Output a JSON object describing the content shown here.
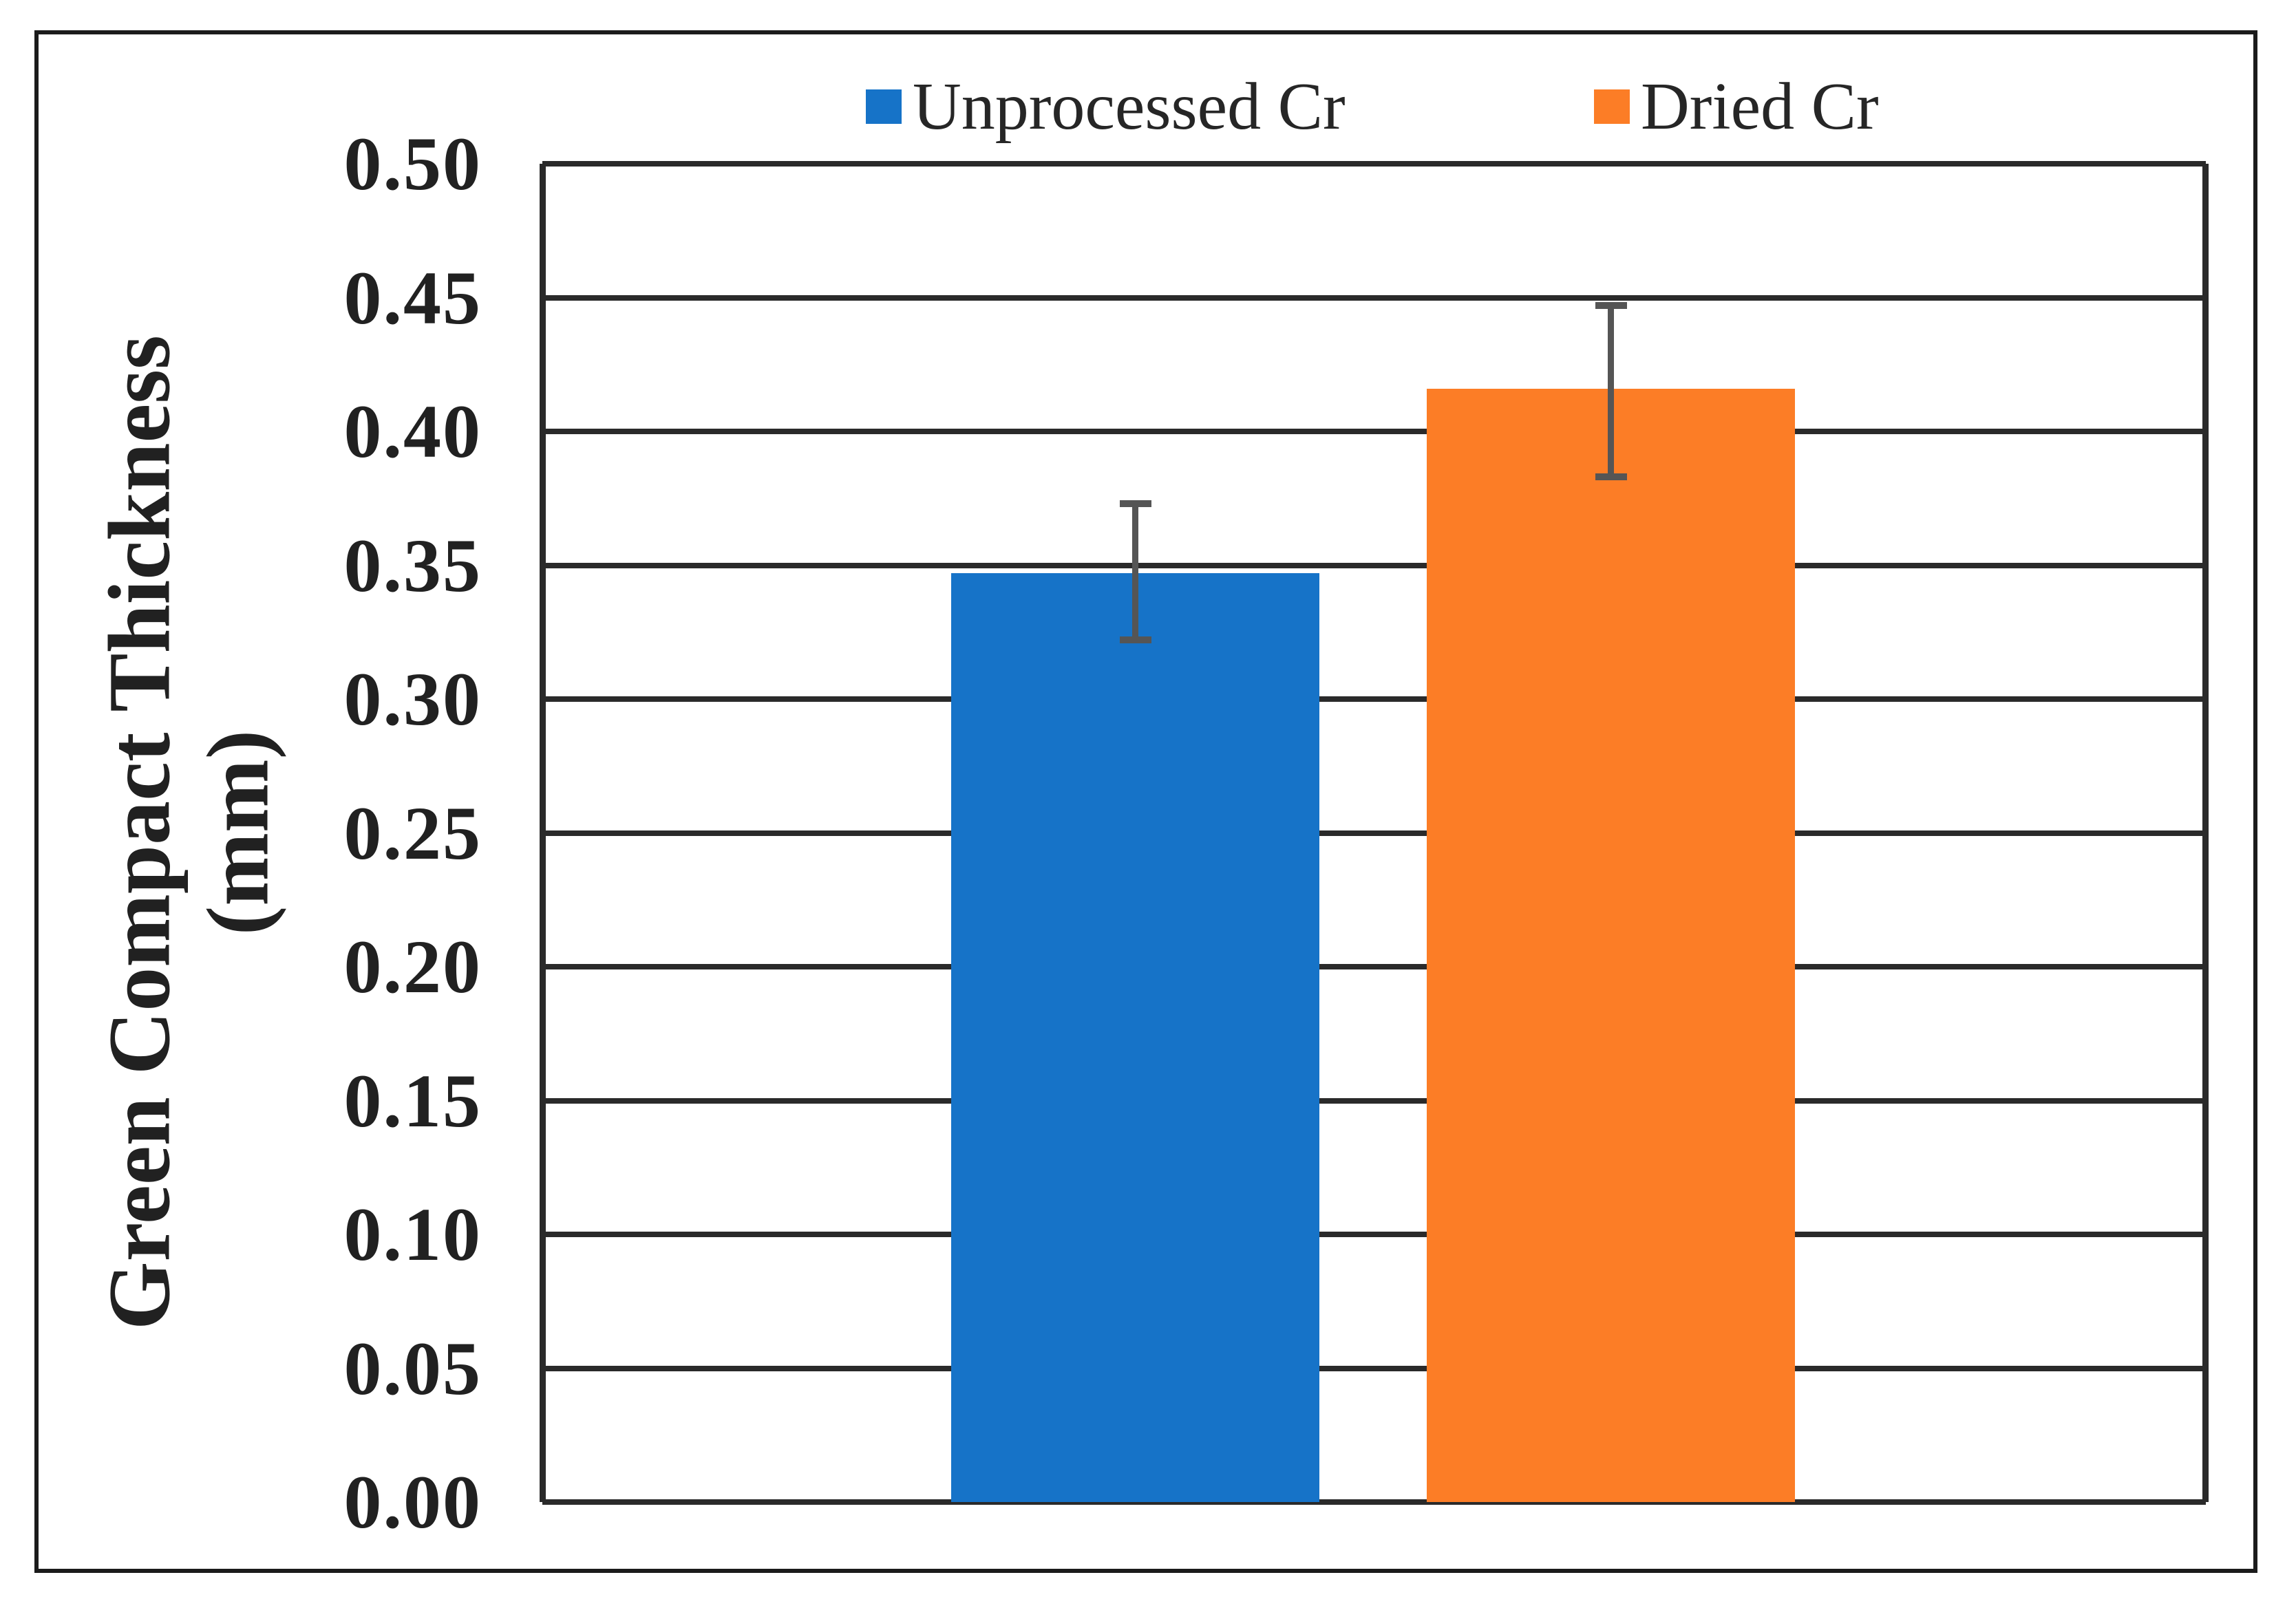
{
  "chart_data": {
    "type": "bar",
    "categories": [
      ""
    ],
    "series": [
      {
        "name": "Unprocessed Cr",
        "values": [
          0.347
        ],
        "error_high": [
          0.373
        ],
        "error_low": [
          0.322
        ],
        "color": "#1673C8"
      },
      {
        "name": "Dried Cr",
        "values": [
          0.416
        ],
        "error_high": [
          0.447
        ],
        "error_low": [
          0.383
        ],
        "color": "#FC7D26"
      }
    ],
    "title": "",
    "xlabel": "",
    "ylabel": "Green Compact Thickness (mm)",
    "ylabel_lines": [
      "Green Compact Thickness",
      "(mm)"
    ],
    "ylim": [
      0,
      0.5
    ],
    "ytick_step": 0.05,
    "ytick_labels": [
      "0.00",
      "0.05",
      "0.10",
      "0.15",
      "0.20",
      "0.25",
      "0.30",
      "0.35",
      "0.40",
      "0.45",
      "0.50"
    ],
    "grid": "horizontal",
    "legend_position": "top",
    "colors": {
      "axis": "#2a2a2a",
      "errorbar": "#555555",
      "text": "#212121",
      "background": "#ffffff",
      "figure_border": "#1b1b1b"
    }
  }
}
